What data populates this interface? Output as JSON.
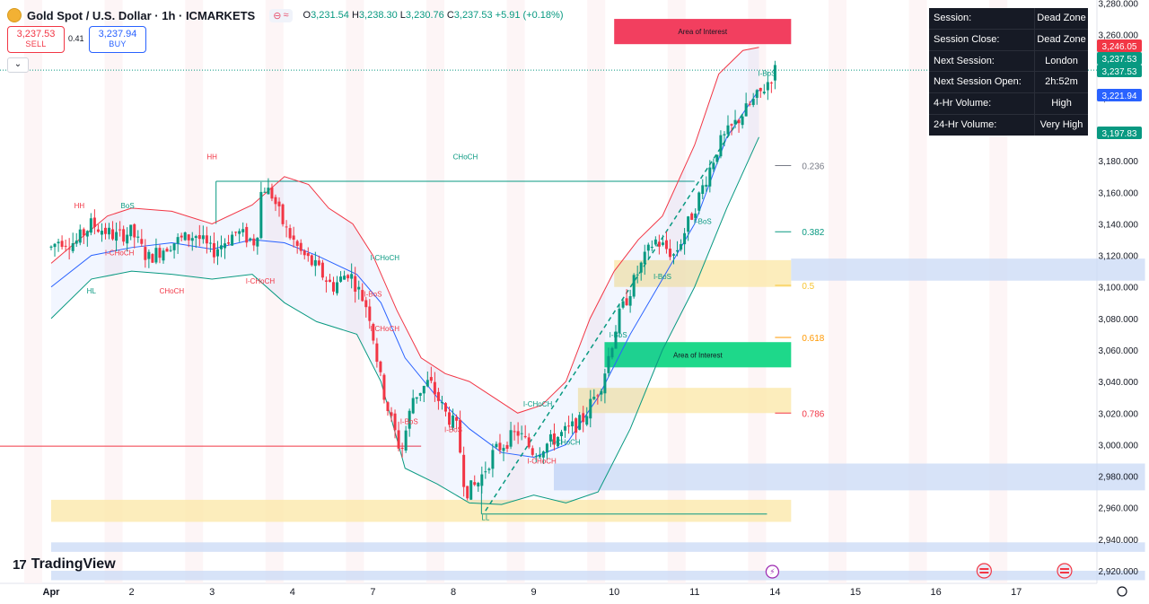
{
  "header": {
    "symbol": "Gold Spot / U.S. Dollar · 1h · ICMARKETS",
    "open_label": "O",
    "open": "3,231.54",
    "high_label": "H",
    "high": "3,238.30",
    "low_label": "L",
    "low": "3,230.76",
    "close_label": "C",
    "close": "3,237.53",
    "change": "+5.91 (+0.18%)"
  },
  "trade": {
    "sell_price": "3,237.53",
    "sell_label": "SELL",
    "spread": "0.41",
    "buy_price": "3,237.94",
    "buy_label": "BUY"
  },
  "info_table": [
    {
      "key": "Session:",
      "value": "Dead Zone"
    },
    {
      "key": "Session Close:",
      "value": "Dead Zone"
    },
    {
      "key": "Next Session:",
      "value": "London"
    },
    {
      "key": "Next Session Open:",
      "value": "2h:52m"
    },
    {
      "key": "4-Hr Volume:",
      "value": "High"
    },
    {
      "key": "24-Hr Volume:",
      "value": "Very High"
    }
  ],
  "watermark": "TradingView",
  "colors": {
    "up": "#089981",
    "down": "#f23645",
    "band": "#2962ff",
    "aoi_top": "#f23f5f",
    "aoi_bottom": "#1ed88a"
  },
  "chart_data": {
    "type": "candlestick",
    "timeframe": "1h",
    "ylim": [
      2912,
      3282
    ],
    "y_ticks": [
      2920,
      2940,
      2960,
      2980,
      3000,
      3020,
      3040,
      3060,
      3080,
      3100,
      3120,
      3140,
      3160,
      3180,
      3200,
      3220,
      3240,
      3260,
      3280
    ],
    "x_ticks": [
      {
        "label": "Apr",
        "idx": 0
      },
      {
        "label": "2",
        "idx": 1
      },
      {
        "label": "3",
        "idx": 2
      },
      {
        "label": "4",
        "idx": 3
      },
      {
        "label": "7",
        "idx": 4
      },
      {
        "label": "8",
        "idx": 5
      },
      {
        "label": "9",
        "idx": 6
      },
      {
        "label": "10",
        "idx": 7
      },
      {
        "label": "11",
        "idx": 8
      },
      {
        "label": "14",
        "idx": 9
      },
      {
        "label": "15",
        "idx": 10
      },
      {
        "label": "16",
        "idx": 11
      },
      {
        "label": "17",
        "idx": 12
      }
    ],
    "close_path": [
      [
        0,
        3125
      ],
      [
        0.1,
        3130
      ],
      [
        0.3,
        3128
      ],
      [
        0.5,
        3140
      ],
      [
        0.8,
        3132
      ],
      [
        1.0,
        3135
      ],
      [
        1.2,
        3118
      ],
      [
        1.5,
        3128
      ],
      [
        1.8,
        3133
      ],
      [
        2.0,
        3122
      ],
      [
        2.3,
        3135
      ],
      [
        2.55,
        3128
      ],
      [
        2.62,
        3165
      ],
      [
        2.75,
        3158
      ],
      [
        2.9,
        3138
      ],
      [
        3.1,
        3122
      ],
      [
        3.3,
        3112
      ],
      [
        3.5,
        3100
      ],
      [
        3.7,
        3110
      ],
      [
        3.85,
        3095
      ],
      [
        3.95,
        3085
      ],
      [
        4.1,
        3040
      ],
      [
        4.2,
        3020
      ],
      [
        4.35,
        2995
      ],
      [
        4.5,
        3030
      ],
      [
        4.7,
        3040
      ],
      [
        4.9,
        3020
      ],
      [
        5.05,
        3010
      ],
      [
        5.15,
        2970
      ],
      [
        5.3,
        2975
      ],
      [
        5.5,
        2995
      ],
      [
        5.8,
        3008
      ],
      [
        6.0,
        2995
      ],
      [
        6.3,
        3005
      ],
      [
        6.6,
        3015
      ],
      [
        6.85,
        3040
      ],
      [
        7.05,
        3080
      ],
      [
        7.3,
        3110
      ],
      [
        7.5,
        3130
      ],
      [
        7.75,
        3120
      ],
      [
        8.0,
        3150
      ],
      [
        8.3,
        3190
      ],
      [
        8.6,
        3210
      ],
      [
        8.85,
        3225
      ],
      [
        9.0,
        3237.53
      ]
    ],
    "bollinger": {
      "upper": [
        [
          0,
          3115
        ],
        [
          0.3,
          3128
        ],
        [
          0.7,
          3145
        ],
        [
          1.0,
          3150
        ],
        [
          1.5,
          3148
        ],
        [
          2.0,
          3140
        ],
        [
          2.5,
          3152
        ],
        [
          2.9,
          3170
        ],
        [
          3.2,
          3165
        ],
        [
          3.45,
          3150
        ],
        [
          3.75,
          3140
        ],
        [
          4.0,
          3120
        ],
        [
          4.3,
          3085
        ],
        [
          4.6,
          3055
        ],
        [
          4.9,
          3045
        ],
        [
          5.2,
          3040
        ],
        [
          5.5,
          3030
        ],
        [
          5.8,
          3020
        ],
        [
          6.1,
          3025
        ],
        [
          6.4,
          3040
        ],
        [
          6.7,
          3080
        ],
        [
          7.0,
          3110
        ],
        [
          7.3,
          3130
        ],
        [
          7.6,
          3145
        ],
        [
          8.0,
          3190
        ],
        [
          8.3,
          3235
        ],
        [
          8.6,
          3250
        ],
        [
          8.8,
          3252
        ]
      ],
      "basis": [
        [
          0,
          3100
        ],
        [
          0.5,
          3120
        ],
        [
          1.0,
          3125
        ],
        [
          1.5,
          3128
        ],
        [
          2.0,
          3124
        ],
        [
          2.5,
          3130
        ],
        [
          2.9,
          3128
        ],
        [
          3.3,
          3120
        ],
        [
          3.8,
          3108
        ],
        [
          4.1,
          3090
        ],
        [
          4.4,
          3055
        ],
        [
          4.8,
          3030
        ],
        [
          5.2,
          3010
        ],
        [
          5.6,
          2995
        ],
        [
          6.0,
          2992
        ],
        [
          6.4,
          3000
        ],
        [
          6.8,
          3030
        ],
        [
          7.2,
          3070
        ],
        [
          7.6,
          3105
        ],
        [
          8.0,
          3140
        ],
        [
          8.4,
          3195
        ],
        [
          8.8,
          3225
        ]
      ],
      "lower": [
        [
          0,
          3080
        ],
        [
          0.5,
          3105
        ],
        [
          1.0,
          3110
        ],
        [
          1.5,
          3108
        ],
        [
          2.0,
          3105
        ],
        [
          2.5,
          3108
        ],
        [
          2.9,
          3090
        ],
        [
          3.3,
          3078
        ],
        [
          3.8,
          3070
        ],
        [
          4.1,
          3040
        ],
        [
          4.4,
          2985
        ],
        [
          4.8,
          2975
        ],
        [
          5.2,
          2963
        ],
        [
          5.6,
          2962
        ],
        [
          6.0,
          2968
        ],
        [
          6.4,
          2963
        ],
        [
          6.8,
          2970
        ],
        [
          7.2,
          3010
        ],
        [
          7.6,
          3060
        ],
        [
          8.0,
          3100
        ],
        [
          8.4,
          3150
        ],
        [
          8.8,
          3195
        ]
      ]
    },
    "fibonacci": [
      {
        "label": "0.236",
        "value": 3177,
        "color": "#787b86"
      },
      {
        "label": "0.382",
        "value": 3135,
        "color": "#089981"
      },
      {
        "label": "0.5",
        "value": 3101,
        "color": "#f7c531"
      },
      {
        "label": "0.618",
        "value": 3068,
        "color": "#ff9800"
      },
      {
        "label": "0.786",
        "value": 3020,
        "color": "#f23645"
      }
    ],
    "zones": [
      {
        "label": "Area of Interest",
        "x0": 7.0,
        "x1": 9.2,
        "y0": 3254,
        "y1": 3270,
        "type": "aoi_top"
      },
      {
        "label": "Area of Interest",
        "x0": 6.88,
        "x1": 9.2,
        "y0": 3049,
        "y1": 3065,
        "type": "aoi_bottom"
      },
      {
        "label": "",
        "x0": 7.0,
        "x1": 9.2,
        "y0": 3100,
        "y1": 3117,
        "type": "yellow"
      },
      {
        "label": "",
        "x0": 9.2,
        "x1": 13.6,
        "y0": 3104,
        "y1": 3118,
        "type": "blue"
      },
      {
        "label": "",
        "x0": 6.55,
        "x1": 9.2,
        "y0": 3020,
        "y1": 3036,
        "type": "yellow"
      },
      {
        "label": "",
        "x0": 6.25,
        "x1": 13.6,
        "y0": 2971,
        "y1": 2988,
        "type": "blue"
      },
      {
        "label": "",
        "x0": 0.0,
        "x1": 9.2,
        "y0": 2951,
        "y1": 2965,
        "type": "yellow"
      },
      {
        "label": "",
        "x0": 0.0,
        "x1": 13.6,
        "y0": 2932,
        "y1": 2938,
        "type": "blue"
      },
      {
        "label": "",
        "x0": 0.0,
        "x1": 13.6,
        "y0": 2914,
        "y1": 2920,
        "type": "blue"
      }
    ],
    "structure_labels": [
      {
        "text": "HH",
        "idx": 0.35,
        "value": 3150,
        "color": "#f23645"
      },
      {
        "text": "BoS",
        "idx": 0.95,
        "value": 3150,
        "color": "#089981"
      },
      {
        "text": "HH",
        "idx": 2.0,
        "value": 3181,
        "color": "#f23645"
      },
      {
        "text": "CHoCH",
        "idx": 5.15,
        "value": 3181,
        "color": "#089981"
      },
      {
        "text": "HL",
        "idx": 0.5,
        "value": 3096,
        "color": "#089981"
      },
      {
        "text": "CHoCH",
        "idx": 1.5,
        "value": 3096,
        "color": "#f23645"
      },
      {
        "text": "I-CHoCH",
        "idx": 0.85,
        "value": 3120,
        "color": "#f23645"
      },
      {
        "text": "I-CHoCH",
        "idx": 2.6,
        "value": 3102,
        "color": "#f23645"
      },
      {
        "text": "I-CHoCH",
        "idx": 4.15,
        "value": 3117,
        "color": "#089981"
      },
      {
        "text": "I-BoS",
        "idx": 4.0,
        "value": 3094,
        "color": "#f23645"
      },
      {
        "text": "I-CHoCH",
        "idx": 4.15,
        "value": 3072,
        "color": "#f23645"
      },
      {
        "text": "I-BoS",
        "idx": 4.45,
        "value": 3013,
        "color": "#f23645"
      },
      {
        "text": "I-BoS",
        "idx": 5.0,
        "value": 3008,
        "color": "#f23645"
      },
      {
        "text": "LL",
        "idx": 5.4,
        "value": 2952,
        "color": "#089981"
      },
      {
        "text": "I-CHoCH",
        "idx": 6.05,
        "value": 3024,
        "color": "#089981"
      },
      {
        "text": "I-CHoCH",
        "idx": 6.1,
        "value": 2988,
        "color": "#f23645"
      },
      {
        "text": "I-CHoCH",
        "idx": 6.4,
        "value": 3000,
        "color": "#089981"
      },
      {
        "text": "I-BoS",
        "idx": 7.05,
        "value": 3068,
        "color": "#089981"
      },
      {
        "text": "I-BoS",
        "idx": 7.6,
        "value": 3105,
        "color": "#089981"
      },
      {
        "text": "I-BoS",
        "idx": 8.1,
        "value": 3140,
        "color": "#089981"
      },
      {
        "text": "I-BoS",
        "idx": 8.9,
        "value": 3234,
        "color": "#089981"
      }
    ],
    "price_labels": [
      {
        "value": 3246.05,
        "text": "3,246.05",
        "color": "#f23645"
      },
      {
        "value": 3237.53,
        "text": "3,237.53",
        "color": "#089981"
      },
      {
        "value": 3237.53,
        "text": "3,237.53",
        "color": "#089981"
      },
      {
        "value": 3221.94,
        "text": "3,221.94",
        "color": "#2962ff"
      },
      {
        "value": 3197.83,
        "text": "3,197.83",
        "color": "#089981"
      }
    ]
  }
}
